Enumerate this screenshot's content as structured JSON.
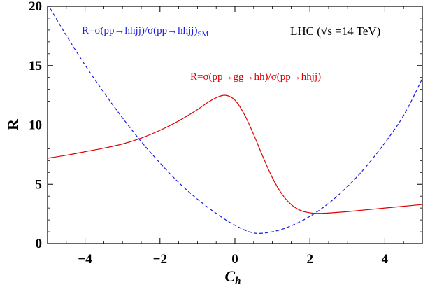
{
  "chart_data": {
    "type": "line",
    "xlabel": "C",
    "xlabel_sub": "h",
    "ylabel": "R",
    "xlim": [
      -5,
      5
    ],
    "ylim": [
      0,
      20
    ],
    "x_ticks": [
      -4,
      -2,
      0,
      2,
      4
    ],
    "x_tick_labels": [
      "−4",
      "−2",
      "0",
      "2",
      "4"
    ],
    "y_ticks": [
      0,
      5,
      10,
      15,
      20
    ],
    "y_tick_labels": [
      "0",
      "5",
      "10",
      "15",
      "20"
    ],
    "grid": false,
    "colors": {
      "ggf": "#e00000",
      "vbf": "#1a1adc"
    },
    "annotations": {
      "lhc": "LHC (√s =14 TeV)",
      "vbf_label": "R=σ(pp→hhjj)/σ(pp→hhjj)",
      "vbf_label_sub": "SM",
      "ggf_label": "R=σ(pp→gg→hh)/σ(pp→hhjj)"
    },
    "series": [
      {
        "style": "solid",
        "color": "#e00000",
        "x": [
          -5,
          -4.5,
          -4,
          -3.5,
          -3,
          -2.5,
          -2,
          -1.5,
          -1,
          -0.75,
          -0.5,
          -0.25,
          0,
          0.25,
          0.5,
          0.75,
          1,
          1.25,
          1.5,
          1.75,
          2,
          2.25,
          2.5,
          3,
          3.5,
          4,
          4.5,
          5
        ],
        "y": [
          7.2,
          7.45,
          7.75,
          8.05,
          8.4,
          8.9,
          9.55,
          10.35,
          11.3,
          11.85,
          12.3,
          12.5,
          12.1,
          10.9,
          9.2,
          7.3,
          5.55,
          4.2,
          3.3,
          2.8,
          2.6,
          2.55,
          2.58,
          2.7,
          2.85,
          3.0,
          3.15,
          3.3
        ]
      },
      {
        "style": "dashed",
        "color": "#1a1adc",
        "x": [
          -5,
          -4.5,
          -4,
          -3.5,
          -3,
          -2.5,
          -2,
          -1.5,
          -1,
          -0.5,
          0,
          0.5,
          1,
          1.5,
          2,
          2.5,
          3,
          3.5,
          4,
          4.5,
          5
        ],
        "y": [
          20.2,
          17.55,
          15.05,
          12.75,
          10.6,
          8.6,
          6.8,
          5.15,
          3.75,
          2.55,
          1.55,
          0.9,
          1.0,
          1.5,
          2.3,
          3.4,
          4.8,
          6.5,
          8.5,
          10.8,
          13.9
        ]
      }
    ]
  }
}
